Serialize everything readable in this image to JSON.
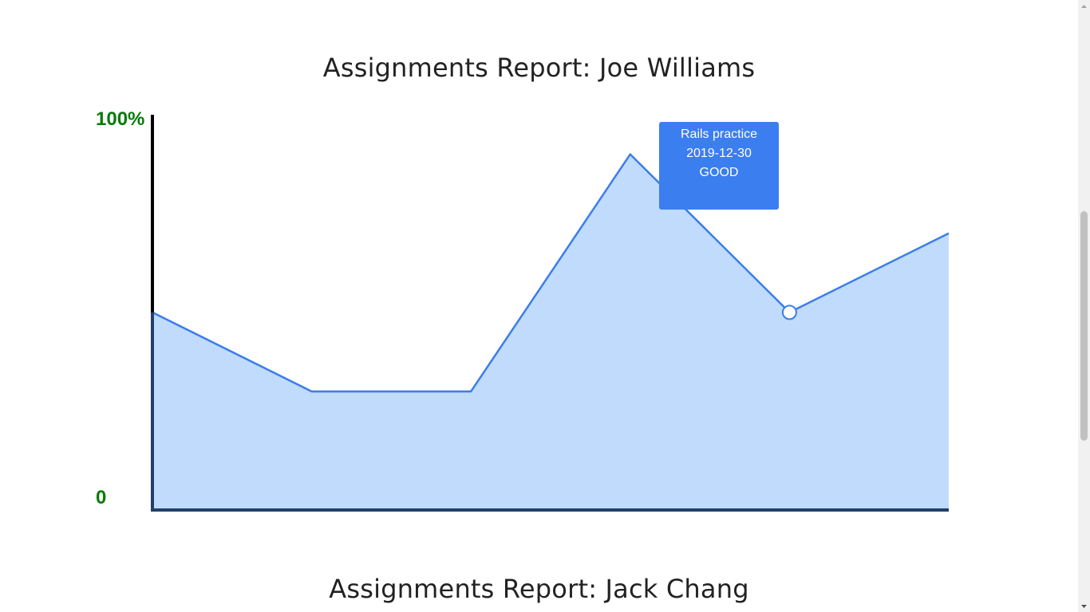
{
  "reports": [
    {
      "title": "Assignments Report: Joe Williams",
      "chart_data": {
        "type": "area",
        "y_axis": {
          "top_label": "100%",
          "bottom_label": "0",
          "ylim": [
            0,
            100
          ]
        },
        "values": [
          50,
          30,
          30,
          90,
          50,
          70
        ],
        "highlighted_index": 4,
        "colors": {
          "line": "#3b7ee8",
          "fill": "#c1dbfc",
          "axis_left_top": "#000000",
          "axis_dark": "#22406b",
          "label": "#0a7a0a"
        }
      },
      "tooltip": {
        "assignment": "Rails practice",
        "date": "2019-12-30",
        "grade": "GOOD",
        "color": "#3b7ef0"
      }
    },
    {
      "title": "Assignments Report: Jack Chang"
    }
  ],
  "scrollbar": {
    "up_icon": "triangle-up-icon",
    "down_icon": "triangle-down-icon"
  }
}
